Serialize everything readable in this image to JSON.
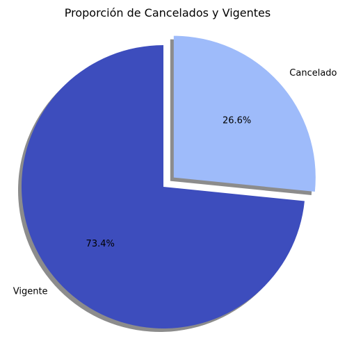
{
  "chart_data": {
    "type": "pie",
    "title": "Proporción de Cancelados y Vigentes",
    "slices": [
      {
        "label": "Cancelado",
        "value": 26.6,
        "pct_label": "26.6%",
        "color": "#9ebbfa",
        "exploded": true
      },
      {
        "label": "Vigente",
        "value": 73.4,
        "pct_label": "73.4%",
        "color": "#3d4dbd",
        "exploded": false
      }
    ],
    "shadow": true,
    "start_angle_deg": 90,
    "direction": "clockwise"
  }
}
